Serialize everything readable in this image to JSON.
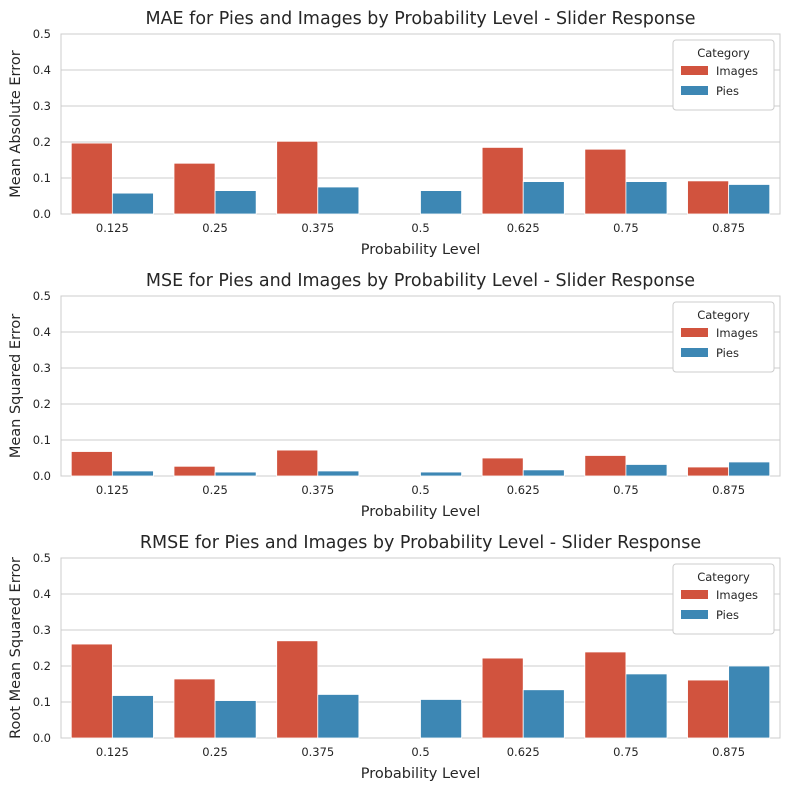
{
  "colors": {
    "Images": "#d1533e",
    "Pies": "#3d87b4"
  },
  "chart_data": [
    {
      "type": "bar",
      "title": "MAE for Pies and Images by Probability Level - Slider Response",
      "xlabel": "Probability Level",
      "ylabel": "Mean Absolute Error",
      "ylim": [
        0,
        0.5
      ],
      "yticks": [
        "0.0",
        "0.1",
        "0.2",
        "0.3",
        "0.4",
        "0.5"
      ],
      "grid": true,
      "legend": {
        "title": "Category",
        "placement": "top-right"
      },
      "categories": [
        "0.125",
        "0.25",
        "0.375",
        "0.5",
        "0.625",
        "0.75",
        "0.875"
      ],
      "series": [
        {
          "name": "Images",
          "values": [
            0.197,
            0.141,
            0.202,
            0.0,
            0.185,
            0.18,
            0.092
          ]
        },
        {
          "name": "Pies",
          "values": [
            0.058,
            0.065,
            0.075,
            0.065,
            0.09,
            0.09,
            0.082
          ]
        }
      ]
    },
    {
      "type": "bar",
      "title": "MSE for Pies and Images by Probability Level - Slider Response",
      "xlabel": "Probability Level",
      "ylabel": "Mean Squared Error",
      "ylim": [
        0,
        0.5
      ],
      "yticks": [
        "0.0",
        "0.1",
        "0.2",
        "0.3",
        "0.4",
        "0.5"
      ],
      "grid": true,
      "legend": {
        "title": "Category",
        "placement": "top-right"
      },
      "categories": [
        "0.125",
        "0.25",
        "0.375",
        "0.5",
        "0.625",
        "0.75",
        "0.875"
      ],
      "series": [
        {
          "name": "Images",
          "values": [
            0.068,
            0.027,
            0.072,
            0.0,
            0.05,
            0.057,
            0.025
          ]
        },
        {
          "name": "Pies",
          "values": [
            0.014,
            0.011,
            0.014,
            0.011,
            0.017,
            0.032,
            0.039
          ]
        }
      ]
    },
    {
      "type": "bar",
      "title": "RMSE for Pies and Images by Probability Level - Slider Response",
      "xlabel": "Probability Level",
      "ylabel": "Root Mean Squared Error",
      "ylim": [
        0,
        0.5
      ],
      "yticks": [
        "0.0",
        "0.1",
        "0.2",
        "0.3",
        "0.4",
        "0.5"
      ],
      "grid": true,
      "legend": {
        "title": "Category",
        "placement": "top-right"
      },
      "categories": [
        "0.125",
        "0.25",
        "0.375",
        "0.5",
        "0.625",
        "0.75",
        "0.875"
      ],
      "series": [
        {
          "name": "Images",
          "values": [
            0.261,
            0.164,
            0.27,
            0.0,
            0.222,
            0.239,
            0.161
          ]
        },
        {
          "name": "Pies",
          "values": [
            0.118,
            0.104,
            0.121,
            0.107,
            0.134,
            0.178,
            0.2
          ]
        }
      ]
    }
  ]
}
